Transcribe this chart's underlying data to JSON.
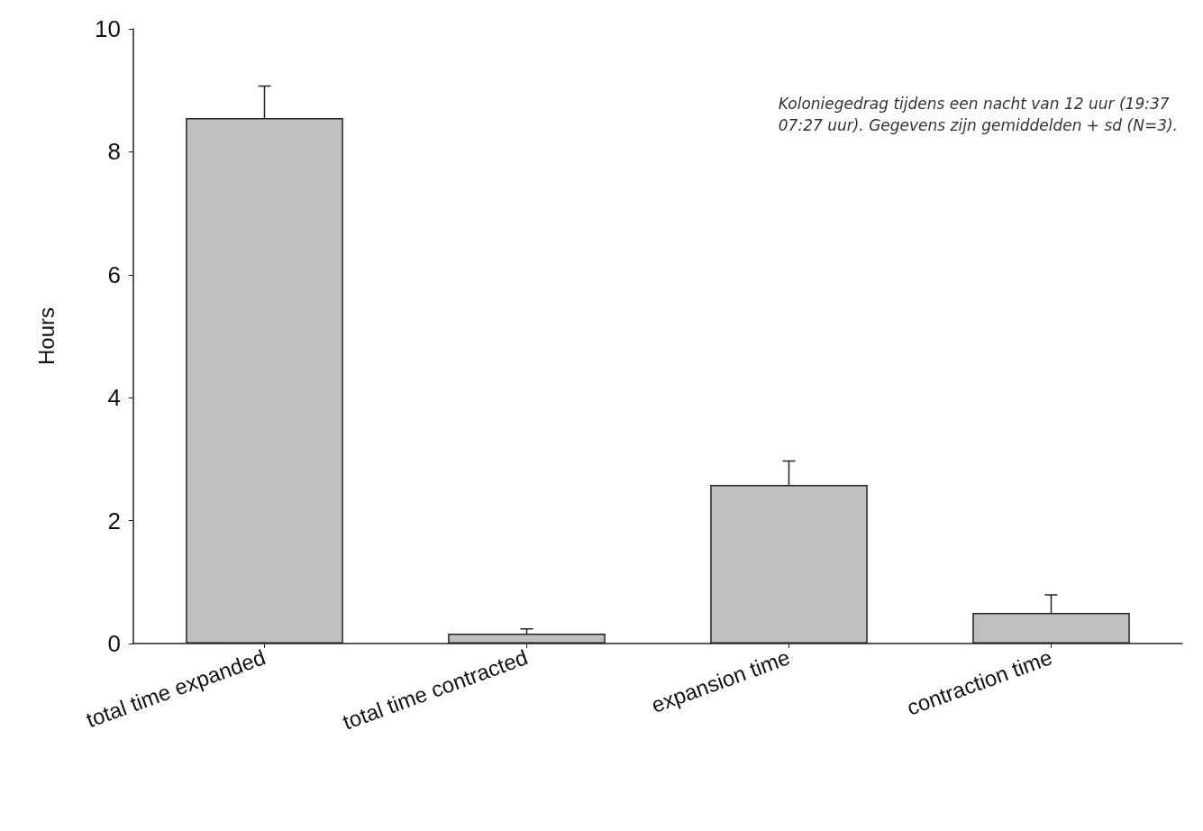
{
  "chart_data": {
    "type": "bar",
    "ylabel": "Hours",
    "categories": [
      "total time expanded",
      "total time contracted",
      "expansion time",
      "contraction time"
    ],
    "values": [
      8.55,
      0.16,
      2.58,
      0.5
    ],
    "errors": [
      [
        8.55,
        9.07
      ],
      [
        0.16,
        0.24
      ],
      [
        2.58,
        2.97
      ],
      [
        0.5,
        0.79
      ]
    ],
    "color": "#c0c0c0",
    "ylim": [
      0,
      10
    ],
    "yticks": [
      0,
      2,
      4,
      6,
      8,
      10
    ],
    "grid": false,
    "annotations": [
      "Koloniegedrag tijdens een nacht van 12 uur (19:37\n07:27 uur). Gegevens zijn gemiddelden + sd (N=3)."
    ]
  }
}
